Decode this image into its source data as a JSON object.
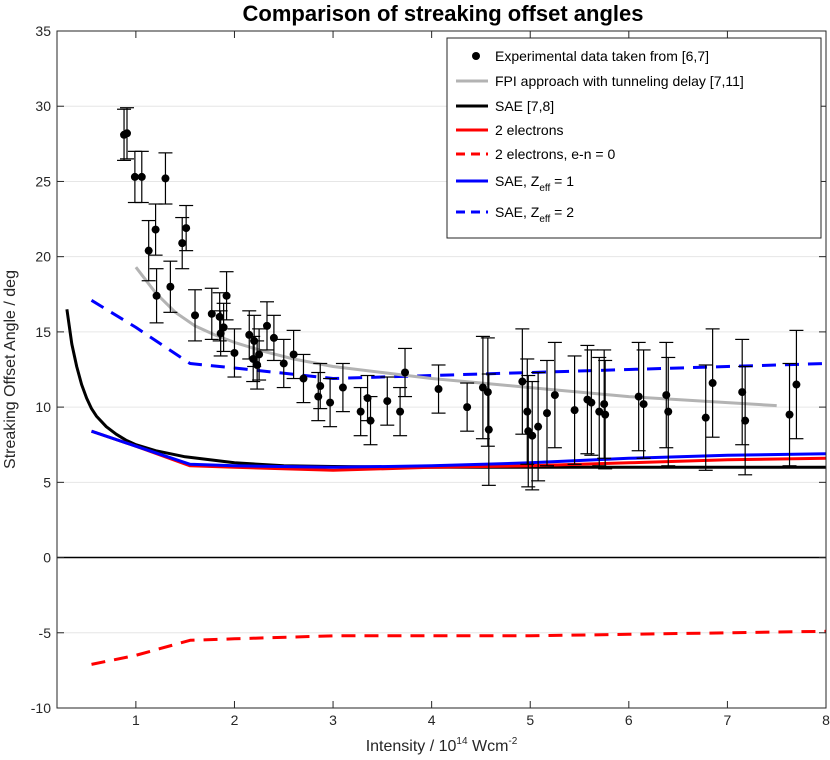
{
  "chart_data": {
    "type": "line",
    "title": "Comparison of streaking offset angles",
    "xlabel": "Intensity / 10",
    "xlabel_sup1": "14",
    "xlabel_mid": " Wcm",
    "xlabel_sup2": "-2",
    "ylabel": "Streaking Offset Angle / deg",
    "xlim": [
      0.2,
      8
    ],
    "ylim": [
      -10,
      35
    ],
    "xticks": [
      1,
      2,
      3,
      4,
      5,
      6,
      7,
      8
    ],
    "yticks": [
      -10,
      -5,
      0,
      5,
      10,
      15,
      20,
      25,
      30,
      35
    ],
    "grid": "horizontal",
    "legend_position": "top-right",
    "series": [
      {
        "name": "FPI approach with tunneling delay [7,11]",
        "color": "#b3b3b3",
        "style": "solid",
        "x": [
          1.0,
          1.2,
          1.4,
          1.6,
          1.8,
          2.0,
          2.3,
          2.6,
          3.0,
          3.5,
          4.0,
          4.5,
          5.0,
          5.5,
          6.0,
          6.5,
          7.0,
          7.5
        ],
        "y": [
          19.3,
          17.6,
          16.3,
          15.4,
          14.8,
          14.3,
          13.7,
          13.2,
          12.7,
          12.3,
          11.9,
          11.6,
          11.3,
          11.0,
          10.7,
          10.5,
          10.3,
          10.1
        ]
      },
      {
        "name": "SAE [7,8]",
        "color": "#000000",
        "style": "solid",
        "x": [
          0.3,
          0.35,
          0.4,
          0.45,
          0.5,
          0.55,
          0.6,
          0.7,
          0.8,
          0.9,
          1.0,
          1.2,
          1.5,
          2.0,
          2.5,
          3.0,
          4.0,
          5.0,
          6.0,
          7.0,
          8.0
        ],
        "y": [
          16.5,
          14.2,
          12.7,
          11.5,
          10.6,
          9.9,
          9.4,
          8.7,
          8.2,
          7.8,
          7.5,
          7.1,
          6.7,
          6.3,
          6.1,
          6.05,
          6.0,
          6.0,
          6.0,
          6.0,
          6.0
        ]
      },
      {
        "name": "2 electrons",
        "color": "#ff0000",
        "style": "solid",
        "x": [
          0.55,
          1.0,
          1.55,
          2.0,
          3.0,
          4.0,
          5.0,
          6.0,
          7.0,
          8.0
        ],
        "y": [
          8.4,
          7.4,
          6.1,
          6.0,
          5.8,
          6.0,
          6.1,
          6.3,
          6.5,
          6.6
        ]
      },
      {
        "name": "2 electrons, e-n = 0",
        "color": "#ff0000",
        "style": "dashed",
        "x": [
          0.55,
          1.0,
          1.55,
          2.0,
          3.0,
          4.0,
          5.0,
          6.0,
          7.0,
          8.0
        ],
        "y": [
          -7.1,
          -6.5,
          -5.5,
          -5.4,
          -5.2,
          -5.2,
          -5.2,
          -5.1,
          -5.0,
          -4.9
        ]
      },
      {
        "name": "SAE, Z",
        "name_sub": "eff",
        "name_suffix": " = 1",
        "color": "#0000ff",
        "style": "solid",
        "x": [
          0.55,
          1.0,
          1.55,
          2.0,
          3.0,
          4.0,
          5.0,
          6.0,
          7.0,
          8.0
        ],
        "y": [
          8.4,
          7.4,
          6.2,
          6.1,
          6.0,
          6.1,
          6.3,
          6.6,
          6.8,
          6.9
        ]
      },
      {
        "name": "SAE, Z",
        "name_sub": "eff",
        "name_suffix": " = 2",
        "color": "#0000ff",
        "style": "dashed",
        "x": [
          0.55,
          1.0,
          1.55,
          2.0,
          3.0,
          4.0,
          5.0,
          6.0,
          7.0,
          8.0
        ],
        "y": [
          17.1,
          15.3,
          12.9,
          12.6,
          11.9,
          12.1,
          12.3,
          12.5,
          12.7,
          12.9
        ]
      }
    ],
    "experimental": {
      "name": "Experimental data taken from [6,7]",
      "color": "#000000",
      "points": [
        {
          "x": 0.88,
          "y": 28.1,
          "err": 1.7
        },
        {
          "x": 0.91,
          "y": 28.2,
          "err": 1.7
        },
        {
          "x": 0.99,
          "y": 25.3,
          "err": 1.7
        },
        {
          "x": 1.06,
          "y": 25.3,
          "err": 1.7
        },
        {
          "x": 1.13,
          "y": 20.4,
          "err": 2.0
        },
        {
          "x": 1.2,
          "y": 21.8,
          "err": 1.7
        },
        {
          "x": 1.21,
          "y": 17.4,
          "err": 1.8
        },
        {
          "x": 1.3,
          "y": 25.2,
          "err": 1.7
        },
        {
          "x": 1.35,
          "y": 18.0,
          "err": 1.7
        },
        {
          "x": 1.47,
          "y": 20.9,
          "err": 1.7
        },
        {
          "x": 1.51,
          "y": 21.9,
          "err": 1.5
        },
        {
          "x": 1.6,
          "y": 16.1,
          "err": 1.7
        },
        {
          "x": 1.77,
          "y": 16.2,
          "err": 1.7
        },
        {
          "x": 1.85,
          "y": 16.0,
          "err": 1.6
        },
        {
          "x": 1.86,
          "y": 14.9,
          "err": 1.5
        },
        {
          "x": 1.89,
          "y": 15.3,
          "err": 1.6
        },
        {
          "x": 1.92,
          "y": 17.4,
          "err": 1.6
        },
        {
          "x": 2.0,
          "y": 13.6,
          "err": 1.6
        },
        {
          "x": 2.15,
          "y": 14.8,
          "err": 1.6
        },
        {
          "x": 2.19,
          "y": 13.2,
          "err": 1.5
        },
        {
          "x": 2.2,
          "y": 14.4,
          "err": 1.7
        },
        {
          "x": 2.23,
          "y": 12.8,
          "err": 1.6
        },
        {
          "x": 2.25,
          "y": 13.5,
          "err": 1.7
        },
        {
          "x": 2.33,
          "y": 15.4,
          "err": 1.6
        },
        {
          "x": 2.4,
          "y": 14.6,
          "err": 1.5
        },
        {
          "x": 2.5,
          "y": 12.9,
          "err": 1.6
        },
        {
          "x": 2.6,
          "y": 13.5,
          "err": 1.6
        },
        {
          "x": 2.7,
          "y": 11.9,
          "err": 1.6
        },
        {
          "x": 2.85,
          "y": 10.7,
          "err": 1.6
        },
        {
          "x": 2.87,
          "y": 11.4,
          "err": 1.5
        },
        {
          "x": 2.97,
          "y": 10.3,
          "err": 1.6
        },
        {
          "x": 3.1,
          "y": 11.3,
          "err": 1.6
        },
        {
          "x": 3.28,
          "y": 9.7,
          "err": 1.6
        },
        {
          "x": 3.35,
          "y": 10.6,
          "err": 1.5
        },
        {
          "x": 3.38,
          "y": 9.1,
          "err": 1.6
        },
        {
          "x": 3.55,
          "y": 10.4,
          "err": 1.6
        },
        {
          "x": 3.68,
          "y": 9.7,
          "err": 1.6
        },
        {
          "x": 3.73,
          "y": 12.3,
          "err": 1.6
        },
        {
          "x": 4.07,
          "y": 11.2,
          "err": 1.6
        },
        {
          "x": 4.36,
          "y": 10.0,
          "err": 1.6
        },
        {
          "x": 4.52,
          "y": 11.3,
          "err": 3.4
        },
        {
          "x": 4.57,
          "y": 11.0,
          "err": 3.6
        },
        {
          "x": 4.58,
          "y": 8.5,
          "err": 3.7
        },
        {
          "x": 4.92,
          "y": 11.7,
          "err": 3.5
        },
        {
          "x": 4.97,
          "y": 9.7,
          "err": 3.5
        },
        {
          "x": 4.98,
          "y": 8.4,
          "err": 3.7
        },
        {
          "x": 5.02,
          "y": 8.1,
          "err": 3.6
        },
        {
          "x": 5.08,
          "y": 8.7,
          "err": 3.6
        },
        {
          "x": 5.17,
          "y": 9.6,
          "err": 3.5
        },
        {
          "x": 5.25,
          "y": 10.8,
          "err": 3.5
        },
        {
          "x": 5.45,
          "y": 9.8,
          "err": 3.6
        },
        {
          "x": 5.58,
          "y": 10.5,
          "err": 3.6
        },
        {
          "x": 5.62,
          "y": 10.3,
          "err": 3.5
        },
        {
          "x": 5.7,
          "y": 9.7,
          "err": 3.6
        },
        {
          "x": 5.75,
          "y": 10.2,
          "err": 3.6
        },
        {
          "x": 5.76,
          "y": 9.5,
          "err": 3.6
        },
        {
          "x": 6.1,
          "y": 10.7,
          "err": 3.6
        },
        {
          "x": 6.15,
          "y": 10.2,
          "err": 3.6
        },
        {
          "x": 6.38,
          "y": 10.8,
          "err": 3.5
        },
        {
          "x": 6.4,
          "y": 9.7,
          "err": 3.6
        },
        {
          "x": 6.78,
          "y": 9.3,
          "err": 3.5
        },
        {
          "x": 6.85,
          "y": 11.6,
          "err": 3.6
        },
        {
          "x": 7.15,
          "y": 11.0,
          "err": 3.5
        },
        {
          "x": 7.18,
          "y": 9.1,
          "err": 3.6
        },
        {
          "x": 7.63,
          "y": 9.5,
          "err": 3.4
        },
        {
          "x": 7.7,
          "y": 11.5,
          "err": 3.6
        }
      ]
    }
  }
}
